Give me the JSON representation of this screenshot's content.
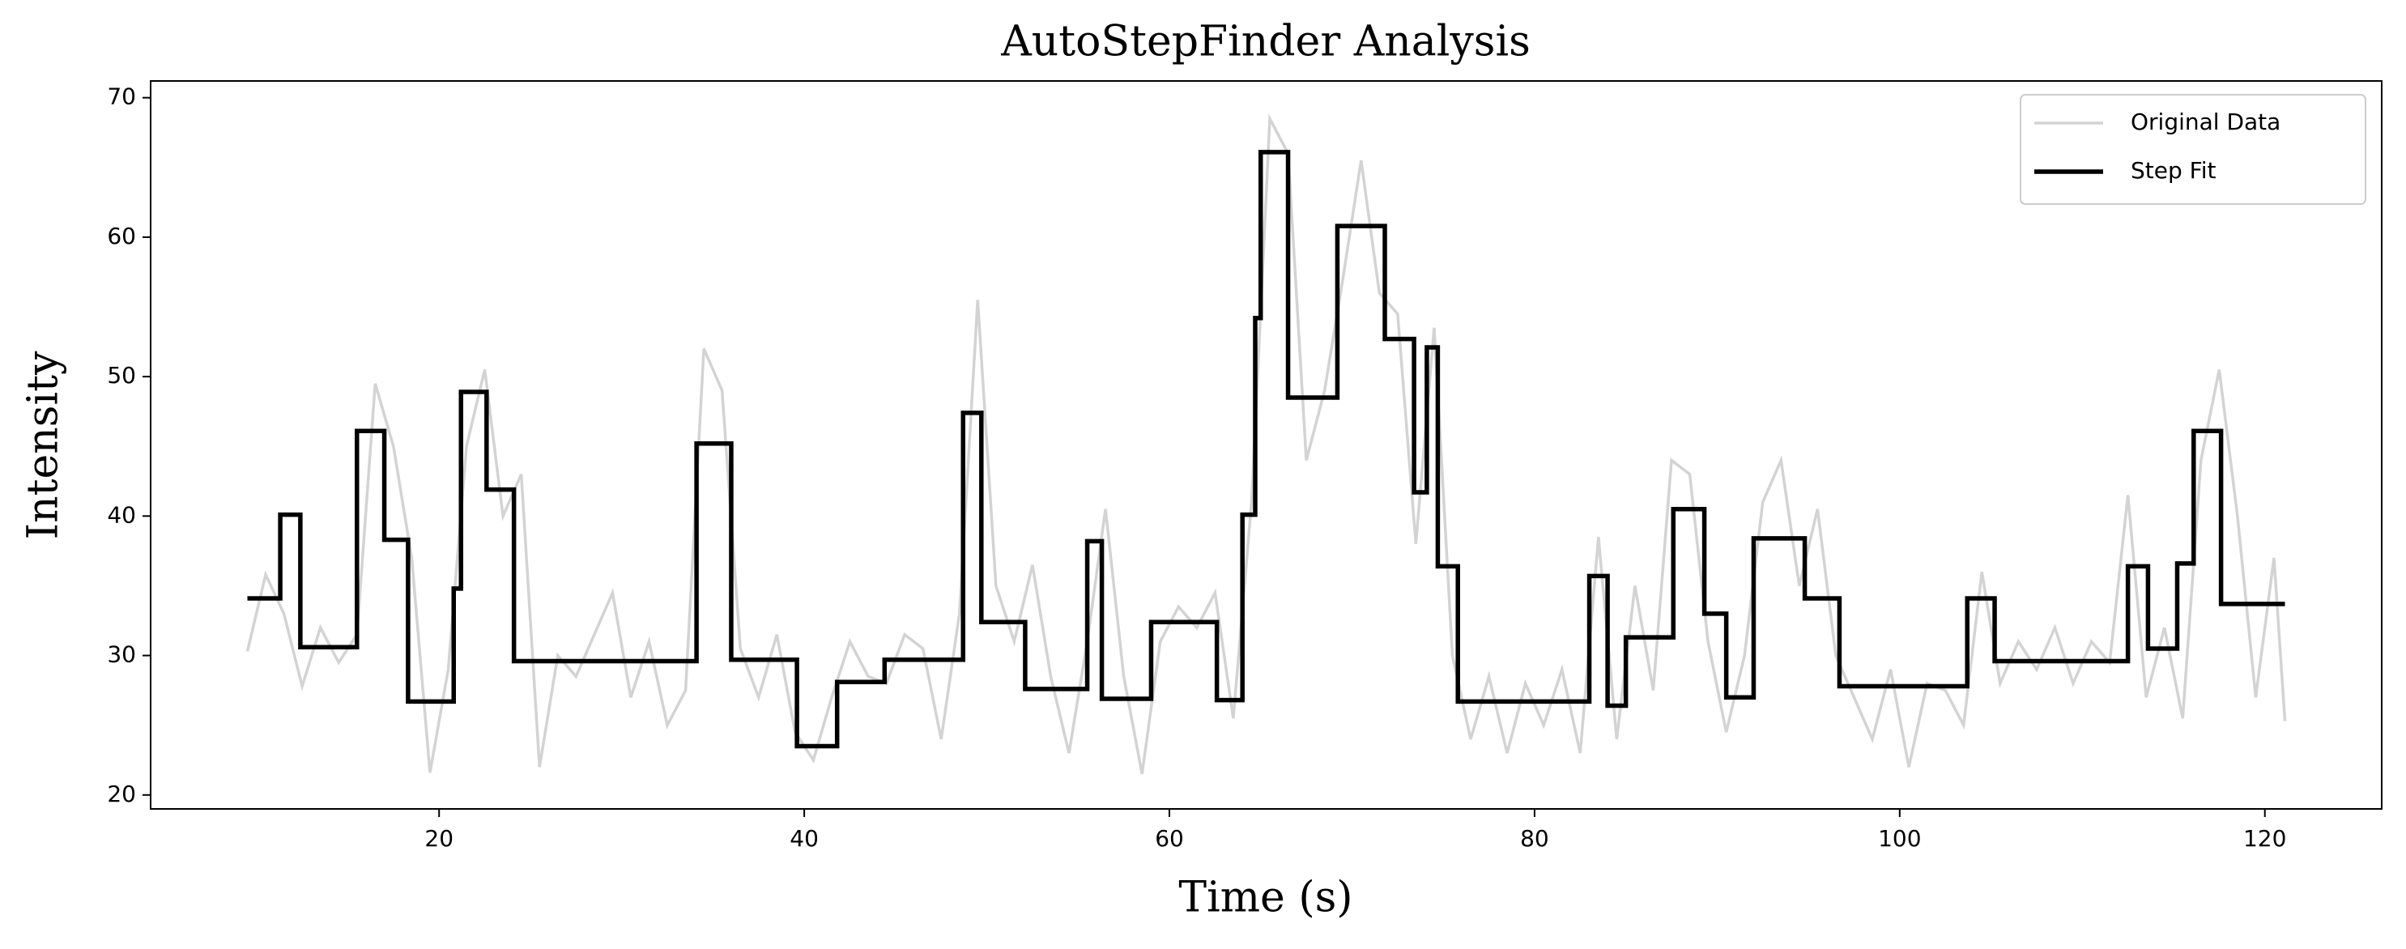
{
  "chart_data": {
    "type": "line",
    "title": "AutoStepFinder Analysis",
    "x_label": "Time (s)",
    "y_label": "Intensity",
    "xlim": [
      4.2,
      126.4
    ],
    "ylim": [
      19.0,
      71.2
    ],
    "xticks": [
      20,
      40,
      60,
      80,
      100,
      120
    ],
    "yticks": [
      20,
      30,
      40,
      50,
      60,
      70
    ],
    "grid": false,
    "legend": "upper right",
    "series": [
      {
        "name": "Original Data",
        "color": "#d3d3d3",
        "drawstyle": "default",
        "x": [
          9.5,
          10.5,
          11.5,
          12.5,
          13.5,
          14.5,
          15.5,
          16.5,
          17.5,
          18.5,
          19.5,
          20.5,
          21.5,
          22.5,
          23.5,
          24.5,
          25.5,
          26.5,
          27.5,
          28.5,
          29.5,
          30.5,
          31.5,
          32.5,
          33.5,
          34.5,
          35.5,
          36.5,
          37.5,
          38.5,
          39.5,
          40.5,
          41.5,
          42.5,
          43.5,
          44.5,
          45.5,
          46.5,
          47.5,
          48.5,
          49.5,
          50.5,
          51.5,
          52.5,
          53.5,
          54.5,
          55.5,
          56.5,
          57.5,
          58.5,
          59.5,
          60.5,
          61.5,
          62.5,
          63.5,
          64.5,
          65.5,
          66.5,
          67.5,
          68.5,
          69.5,
          70.5,
          71.5,
          72.5,
          73.5,
          74.5,
          75.5,
          76.5,
          77.5,
          78.5,
          79.5,
          80.5,
          81.5,
          82.5,
          83.5,
          84.5,
          85.5,
          86.5,
          87.5,
          88.5,
          89.5,
          90.5,
          91.5,
          92.5,
          93.5,
          94.5,
          95.5,
          96.5,
          97.5,
          98.5,
          99.5,
          100.5,
          101.5,
          102.5,
          103.5,
          104.5,
          105.5,
          106.5,
          107.5,
          108.5,
          109.5,
          110.5,
          111.5,
          112.5,
          113.5,
          114.5,
          115.5,
          116.5,
          117.5,
          118.5,
          119.5,
          120.5,
          121.1
        ],
        "values": [
          30.3,
          35.8,
          33,
          27.8,
          32,
          29.5,
          31.5,
          49.5,
          45,
          37,
          21.6,
          29,
          45,
          50.5,
          40,
          43,
          22,
          30,
          28.5,
          31.5,
          34.5,
          27,
          31,
          25,
          27.5,
          52,
          49,
          30.5,
          27,
          31.5,
          24.5,
          22.5,
          27,
          31,
          28.5,
          28,
          31.5,
          30.5,
          24,
          33,
          55.5,
          35,
          31,
          36.5,
          28.5,
          23,
          31,
          40.5,
          28.5,
          21.5,
          31,
          33.5,
          32,
          34.5,
          25.5,
          41,
          68.5,
          66,
          44,
          49,
          57,
          65.5,
          56,
          54.5,
          38,
          53.5,
          30,
          24,
          28.5,
          23,
          28,
          25,
          29,
          23,
          38.5,
          24,
          35,
          27.5,
          44,
          43,
          31,
          24.5,
          30,
          41,
          44,
          35,
          40.5,
          30,
          27,
          24,
          29,
          22,
          28,
          27.5,
          25,
          36,
          28,
          31,
          29,
          32,
          28,
          31,
          29.5,
          41.5,
          27,
          32,
          25.5,
          44,
          50.5,
          40,
          27,
          37,
          25.3
        ]
      },
      {
        "name": "Step Fit",
        "color": "#000000",
        "drawstyle": "steps-post",
        "x": [
          9.5,
          11.3,
          12.4,
          15.5,
          17.0,
          18.3,
          20.8,
          21.2,
          22.6,
          24.1,
          34.1,
          36.0,
          39.6,
          41.8,
          44.4,
          48.7,
          49.7,
          52.1,
          55.5,
          56.3,
          59.0,
          62.6,
          64.0,
          64.7,
          65.0,
          66.5,
          69.2,
          71.8,
          73.4,
          74.1,
          74.7,
          75.8,
          83.0,
          84.0,
          85.0,
          87.6,
          89.3,
          90.5,
          92.0,
          94.8,
          96.7,
          103.7,
          105.2,
          112.5,
          113.6,
          115.2,
          116.1,
          117.6,
          121.1
        ],
        "values": [
          34.1,
          40.1,
          30.6,
          46.1,
          38.3,
          26.7,
          34.8,
          48.9,
          41.9,
          29.6,
          45.2,
          29.7,
          23.5,
          28.1,
          29.7,
          47.4,
          32.4,
          27.6,
          38.2,
          26.9,
          32.4,
          26.8,
          40.1,
          54.2,
          66.1,
          48.5,
          60.8,
          52.7,
          41.7,
          52.1,
          36.4,
          26.7,
          35.7,
          26.4,
          31.3,
          40.5,
          33.0,
          27.0,
          38.4,
          34.1,
          27.8,
          34.1,
          29.6,
          36.4,
          30.5,
          36.6,
          46.1,
          33.7,
          33.7
        ]
      }
    ]
  }
}
